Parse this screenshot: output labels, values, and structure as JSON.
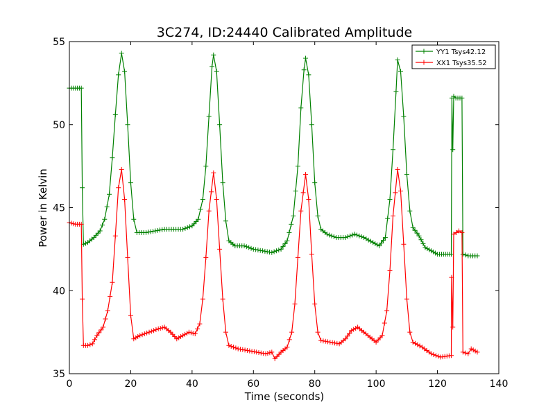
{
  "chart_data": {
    "type": "line",
    "title": "3C274, ID:24440 Calibrated Amplitude",
    "xlabel": "Time (seconds)",
    "ylabel": "Power in Kelvin",
    "xlim": [
      0,
      140
    ],
    "ylim": [
      35,
      55
    ],
    "xticks": [
      0,
      20,
      40,
      60,
      80,
      100,
      120,
      140
    ],
    "yticks": [
      35,
      40,
      45,
      50,
      55
    ],
    "grid": false,
    "legend_position": "top-right",
    "series": [
      {
        "name": "YY1 Tsys42.12",
        "color": "#008000",
        "marker": "plus",
        "points": [
          [
            0,
            52.2
          ],
          [
            2,
            52.2
          ],
          [
            3.9,
            52.2
          ],
          [
            4.2,
            46.2
          ],
          [
            4.6,
            42.8
          ],
          [
            6,
            42.9
          ],
          [
            8,
            43.2
          ],
          [
            10,
            43.6
          ],
          [
            11.5,
            44.3
          ],
          [
            13,
            45.8
          ],
          [
            14,
            48
          ],
          [
            15,
            50.6
          ],
          [
            16,
            53
          ],
          [
            17,
            54.3
          ],
          [
            18,
            53.2
          ],
          [
            19,
            50
          ],
          [
            20,
            46.5
          ],
          [
            21,
            44.3
          ],
          [
            22,
            43.5
          ],
          [
            25,
            43.5
          ],
          [
            28,
            43.6
          ],
          [
            31,
            43.7
          ],
          [
            34,
            43.7
          ],
          [
            37,
            43.7
          ],
          [
            40,
            43.9
          ],
          [
            42,
            44.3
          ],
          [
            43.5,
            45.5
          ],
          [
            44.5,
            47.5
          ],
          [
            45.5,
            50.5
          ],
          [
            46.5,
            53.5
          ],
          [
            47,
            54.2
          ],
          [
            48,
            53.2
          ],
          [
            49,
            50
          ],
          [
            50,
            46.5
          ],
          [
            51,
            44.2
          ],
          [
            52,
            43
          ],
          [
            54,
            42.7
          ],
          [
            57,
            42.7
          ],
          [
            60,
            42.5
          ],
          [
            63,
            42.4
          ],
          [
            66,
            42.3
          ],
          [
            69,
            42.5
          ],
          [
            71,
            43
          ],
          [
            73,
            44.5
          ],
          [
            74.5,
            47.5
          ],
          [
            75.5,
            51
          ],
          [
            76.5,
            53.3
          ],
          [
            77,
            54
          ],
          [
            78,
            53
          ],
          [
            79,
            50
          ],
          [
            80,
            46.5
          ],
          [
            81,
            44.5
          ],
          [
            82,
            43.7
          ],
          [
            84,
            43.4
          ],
          [
            87,
            43.2
          ],
          [
            90,
            43.2
          ],
          [
            93,
            43.4
          ],
          [
            96,
            43.2
          ],
          [
            99,
            42.9
          ],
          [
            101,
            42.7
          ],
          [
            103,
            43.2
          ],
          [
            104.5,
            45.5
          ],
          [
            105.5,
            48.5
          ],
          [
            106.5,
            52
          ],
          [
            107,
            53.9
          ],
          [
            108,
            53.2
          ],
          [
            109,
            50.5
          ],
          [
            110,
            47
          ],
          [
            111,
            44.8
          ],
          [
            112,
            43.8
          ],
          [
            114,
            43.3
          ],
          [
            116,
            42.6
          ],
          [
            118,
            42.4
          ],
          [
            120,
            42.2
          ],
          [
            122,
            42.2
          ],
          [
            124.5,
            42.2
          ],
          [
            124.7,
            51.6
          ],
          [
            125,
            48.5
          ],
          [
            125.3,
            51.7
          ],
          [
            126,
            51.6
          ],
          [
            128,
            51.6
          ],
          [
            128.3,
            42.2
          ],
          [
            130,
            42.1
          ],
          [
            133,
            42.1
          ]
        ]
      },
      {
        "name": "XX1 Tsys35.52",
        "color": "#ff0000",
        "marker": "plus",
        "points": [
          [
            0,
            44.1
          ],
          [
            2,
            44.0
          ],
          [
            3.9,
            44.0
          ],
          [
            4.2,
            39.5
          ],
          [
            4.6,
            36.7
          ],
          [
            6,
            36.7
          ],
          [
            7.5,
            36.8
          ],
          [
            9,
            37.3
          ],
          [
            11,
            37.8
          ],
          [
            12.5,
            38.8
          ],
          [
            14,
            40.5
          ],
          [
            15,
            43.3
          ],
          [
            16,
            46.2
          ],
          [
            17,
            47.3
          ],
          [
            18,
            45.5
          ],
          [
            19,
            42
          ],
          [
            20,
            38.5
          ],
          [
            21,
            37.1
          ],
          [
            23,
            37.3
          ],
          [
            26,
            37.5
          ],
          [
            29,
            37.7
          ],
          [
            31,
            37.8
          ],
          [
            33,
            37.5
          ],
          [
            35,
            37.1
          ],
          [
            37,
            37.3
          ],
          [
            39,
            37.5
          ],
          [
            41,
            37.4
          ],
          [
            42.5,
            38
          ],
          [
            43.5,
            39.5
          ],
          [
            44.5,
            42
          ],
          [
            45.5,
            44.8
          ],
          [
            47,
            47.1
          ],
          [
            48,
            45.5
          ],
          [
            49,
            42.5
          ],
          [
            50,
            39.5
          ],
          [
            51,
            37.5
          ],
          [
            52,
            36.7
          ],
          [
            55,
            36.5
          ],
          [
            58,
            36.4
          ],
          [
            61,
            36.3
          ],
          [
            64,
            36.2
          ],
          [
            66,
            36.3
          ],
          [
            67,
            35.9
          ],
          [
            69,
            36.3
          ],
          [
            71,
            36.6
          ],
          [
            72.5,
            37.5
          ],
          [
            73.5,
            39.2
          ],
          [
            74.5,
            42
          ],
          [
            75.5,
            44.8
          ],
          [
            77,
            47
          ],
          [
            78,
            45.5
          ],
          [
            79,
            42.2
          ],
          [
            80,
            39.2
          ],
          [
            81,
            37.5
          ],
          [
            82,
            37
          ],
          [
            85,
            36.9
          ],
          [
            88,
            36.8
          ],
          [
            90,
            37.1
          ],
          [
            92,
            37.6
          ],
          [
            94,
            37.8
          ],
          [
            96,
            37.5
          ],
          [
            98,
            37.2
          ],
          [
            100,
            36.9
          ],
          [
            102,
            37.3
          ],
          [
            103.5,
            38.8
          ],
          [
            104.5,
            41.2
          ],
          [
            105.5,
            44.5
          ],
          [
            107,
            47.3
          ],
          [
            108,
            46
          ],
          [
            109,
            42.8
          ],
          [
            110,
            39.5
          ],
          [
            111,
            37.5
          ],
          [
            112,
            36.9
          ],
          [
            115,
            36.6
          ],
          [
            118,
            36.2
          ],
          [
            121,
            36.0
          ],
          [
            124.5,
            36.1
          ],
          [
            124.6,
            40.8
          ],
          [
            125,
            37.8
          ],
          [
            125.3,
            43.4
          ],
          [
            127,
            43.6
          ],
          [
            128,
            43.5
          ],
          [
            128.3,
            36.3
          ],
          [
            130,
            36.2
          ],
          [
            131,
            36.5
          ],
          [
            133,
            36.3
          ]
        ]
      }
    ]
  }
}
